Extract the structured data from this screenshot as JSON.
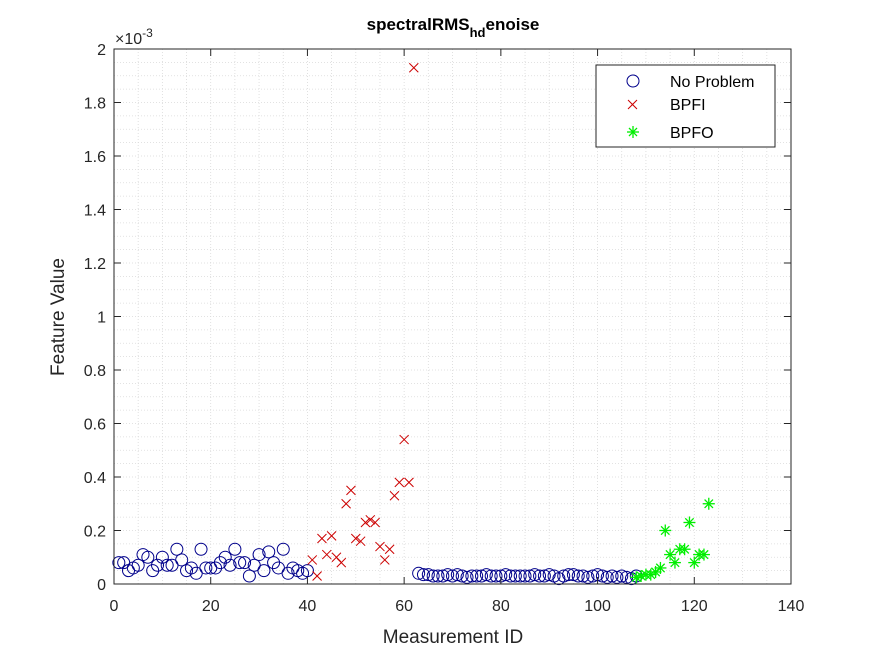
{
  "chart_data": {
    "type": "scatter",
    "title_main": "spectralRMS",
    "title_sub": "hd",
    "title_tail": "enoise",
    "xlabel": "Measurement ID",
    "ylabel": "Feature Value",
    "exponent_prefix": "×10",
    "exponent_value": "-3",
    "xlim": [
      0,
      140
    ],
    "ylim": [
      0,
      2
    ],
    "xticks": [
      0,
      20,
      40,
      60,
      80,
      100,
      120,
      140
    ],
    "xtick_labels": [
      "0",
      "20",
      "40",
      "60",
      "80",
      "100",
      "120",
      "140"
    ],
    "yticks": [
      0,
      0.2,
      0.4,
      0.6,
      0.8,
      1,
      1.2,
      1.4,
      1.6,
      1.8,
      2
    ],
    "ytick_labels": [
      "0",
      "0.2",
      "0.4",
      "0.6",
      "0.8",
      "1",
      "1.2",
      "1.4",
      "1.6",
      "1.8",
      "2"
    ],
    "grid": "minor-dotted",
    "legend_position": "top-right",
    "colors": {
      "no_problem": "#00008b",
      "bpfi": "#cc0000",
      "bpfo": "#00ee00",
      "axis": "#262626",
      "grid": "#d9d9d9"
    },
    "series": [
      {
        "name": "No Problem",
        "marker": "circle",
        "color": "#00008b",
        "x": [
          1,
          2,
          3,
          4,
          5,
          6,
          7,
          8,
          9,
          10,
          11,
          12,
          13,
          14,
          15,
          16,
          17,
          18,
          19,
          20,
          21,
          22,
          23,
          24,
          25,
          26,
          27,
          28,
          29,
          30,
          31,
          32,
          33,
          34,
          35,
          36,
          37,
          38,
          39,
          40,
          63,
          64,
          65,
          66,
          67,
          68,
          69,
          70,
          71,
          72,
          73,
          74,
          75,
          76,
          77,
          78,
          79,
          80,
          81,
          82,
          83,
          84,
          85,
          86,
          87,
          88,
          89,
          90,
          91,
          92,
          93,
          94,
          95,
          96,
          97,
          98,
          99,
          100,
          101,
          102,
          103,
          104,
          105,
          106,
          107,
          108
        ],
        "y": [
          0.08,
          0.08,
          0.05,
          0.06,
          0.07,
          0.11,
          0.1,
          0.05,
          0.07,
          0.1,
          0.07,
          0.07,
          0.13,
          0.09,
          0.05,
          0.06,
          0.04,
          0.13,
          0.06,
          0.06,
          0.06,
          0.08,
          0.1,
          0.07,
          0.13,
          0.08,
          0.08,
          0.03,
          0.07,
          0.11,
          0.05,
          0.12,
          0.08,
          0.06,
          0.13,
          0.04,
          0.06,
          0.05,
          0.04,
          0.05,
          0.04,
          0.035,
          0.035,
          0.03,
          0.03,
          0.03,
          0.035,
          0.03,
          0.035,
          0.03,
          0.025,
          0.03,
          0.03,
          0.03,
          0.035,
          0.03,
          0.03,
          0.03,
          0.035,
          0.03,
          0.03,
          0.03,
          0.03,
          0.03,
          0.035,
          0.03,
          0.03,
          0.035,
          0.03,
          0.02,
          0.03,
          0.035,
          0.035,
          0.03,
          0.03,
          0.025,
          0.03,
          0.035,
          0.03,
          0.025,
          0.03,
          0.025,
          0.03,
          0.025,
          0.02,
          0.03
        ]
      },
      {
        "name": "BPFI",
        "marker": "x",
        "color": "#cc0000",
        "x": [
          41,
          42,
          43,
          44,
          45,
          46,
          47,
          48,
          49,
          50,
          51,
          52,
          53,
          54,
          55,
          56,
          57,
          58,
          59,
          60,
          61,
          62
        ],
        "y": [
          0.09,
          0.03,
          0.17,
          0.11,
          0.18,
          0.1,
          0.08,
          0.3,
          0.35,
          0.17,
          0.16,
          0.23,
          0.24,
          0.23,
          0.14,
          0.09,
          0.13,
          0.33,
          0.38,
          0.54,
          0.38,
          1.93
        ]
      },
      {
        "name": "BPFO",
        "marker": "star",
        "color": "#00ee00",
        "x": [
          108,
          109,
          110,
          111,
          112,
          113,
          114,
          115,
          116,
          117,
          118,
          119,
          120,
          121,
          122,
          123
        ],
        "y": [
          0.025,
          0.03,
          0.035,
          0.035,
          0.045,
          0.06,
          0.2,
          0.11,
          0.08,
          0.13,
          0.13,
          0.23,
          0.08,
          0.11,
          0.11,
          0.3
        ]
      }
    ]
  }
}
